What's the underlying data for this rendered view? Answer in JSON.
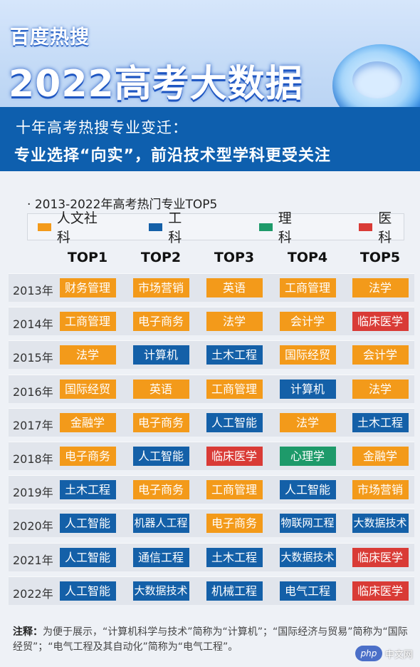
{
  "header": {
    "brand": "百度热搜",
    "title": "2022高考大数据"
  },
  "banner": {
    "line1": "十年高考热搜专业变迁：",
    "line2": "专业选择“向实”，前沿技术型学科更受关注"
  },
  "chart_title": "2013-2022年高考热门专业TOP5",
  "legend": [
    {
      "label": "人文社科",
      "color": "#f39a1a"
    },
    {
      "label": "工科",
      "color": "#1460a8"
    },
    {
      "label": "理科",
      "color": "#1e9a6a"
    },
    {
      "label": "医科",
      "color": "#d93b36"
    }
  ],
  "columns": [
    "TOP1",
    "TOP2",
    "TOP3",
    "TOP4",
    "TOP5"
  ],
  "rows": [
    {
      "year": "2013年",
      "cells": [
        {
          "text": "财务管理",
          "cat": "humanities"
        },
        {
          "text": "市场营销",
          "cat": "humanities"
        },
        {
          "text": "英语",
          "cat": "humanities"
        },
        {
          "text": "工商管理",
          "cat": "humanities"
        },
        {
          "text": "法学",
          "cat": "humanities"
        }
      ]
    },
    {
      "year": "2014年",
      "cells": [
        {
          "text": "工商管理",
          "cat": "humanities"
        },
        {
          "text": "电子商务",
          "cat": "humanities"
        },
        {
          "text": "法学",
          "cat": "humanities"
        },
        {
          "text": "会计学",
          "cat": "humanities"
        },
        {
          "text": "临床医学",
          "cat": "medicine"
        }
      ]
    },
    {
      "year": "2015年",
      "cells": [
        {
          "text": "法学",
          "cat": "humanities"
        },
        {
          "text": "计算机",
          "cat": "engineering"
        },
        {
          "text": "土木工程",
          "cat": "engineering"
        },
        {
          "text": "国际经贸",
          "cat": "humanities"
        },
        {
          "text": "会计学",
          "cat": "humanities"
        }
      ]
    },
    {
      "year": "2016年",
      "cells": [
        {
          "text": "国际经贸",
          "cat": "humanities"
        },
        {
          "text": "英语",
          "cat": "humanities"
        },
        {
          "text": "工商管理",
          "cat": "humanities"
        },
        {
          "text": "计算机",
          "cat": "engineering"
        },
        {
          "text": "法学",
          "cat": "humanities"
        }
      ]
    },
    {
      "year": "2017年",
      "cells": [
        {
          "text": "金融学",
          "cat": "humanities"
        },
        {
          "text": "电子商务",
          "cat": "humanities"
        },
        {
          "text": "人工智能",
          "cat": "engineering"
        },
        {
          "text": "法学",
          "cat": "humanities"
        },
        {
          "text": "土木工程",
          "cat": "engineering"
        }
      ]
    },
    {
      "year": "2018年",
      "cells": [
        {
          "text": "电子商务",
          "cat": "humanities"
        },
        {
          "text": "人工智能",
          "cat": "engineering"
        },
        {
          "text": "临床医学",
          "cat": "medicine"
        },
        {
          "text": "心理学",
          "cat": "science"
        },
        {
          "text": "金融学",
          "cat": "humanities"
        }
      ]
    },
    {
      "year": "2019年",
      "cells": [
        {
          "text": "土木工程",
          "cat": "engineering"
        },
        {
          "text": "电子商务",
          "cat": "humanities"
        },
        {
          "text": "工商管理",
          "cat": "humanities"
        },
        {
          "text": "人工智能",
          "cat": "engineering"
        },
        {
          "text": "市场营销",
          "cat": "humanities"
        }
      ]
    },
    {
      "year": "2020年",
      "cells": [
        {
          "text": "人工智能",
          "cat": "engineering"
        },
        {
          "text": "机器人工程",
          "cat": "engineering"
        },
        {
          "text": "电子商务",
          "cat": "humanities"
        },
        {
          "text": "物联网工程",
          "cat": "engineering"
        },
        {
          "text": "大数据技术",
          "cat": "engineering"
        }
      ]
    },
    {
      "year": "2021年",
      "cells": [
        {
          "text": "人工智能",
          "cat": "engineering"
        },
        {
          "text": "通信工程",
          "cat": "engineering"
        },
        {
          "text": "土木工程",
          "cat": "engineering"
        },
        {
          "text": "大数据技术",
          "cat": "engineering"
        },
        {
          "text": "临床医学",
          "cat": "medicine"
        }
      ]
    },
    {
      "year": "2022年",
      "cells": [
        {
          "text": "人工智能",
          "cat": "engineering"
        },
        {
          "text": "大数据技术",
          "cat": "engineering"
        },
        {
          "text": "机械工程",
          "cat": "engineering"
        },
        {
          "text": "电气工程",
          "cat": "engineering"
        },
        {
          "text": "临床医学",
          "cat": "medicine"
        }
      ]
    }
  ],
  "category_colors": {
    "humanities": "#f39a1a",
    "engineering": "#1460a8",
    "science": "#1e9a6a",
    "medicine": "#d93b36"
  },
  "footnote": {
    "label": "注释：",
    "text": "为便于展示，“计算机科学与技术”简称为“计算机”；“国际经济与贸易”简称为“国际经贸”；“电气工程及其自动化”简称为“电气工程”。"
  },
  "watermark": {
    "logo": "php",
    "text": "中文网"
  }
}
